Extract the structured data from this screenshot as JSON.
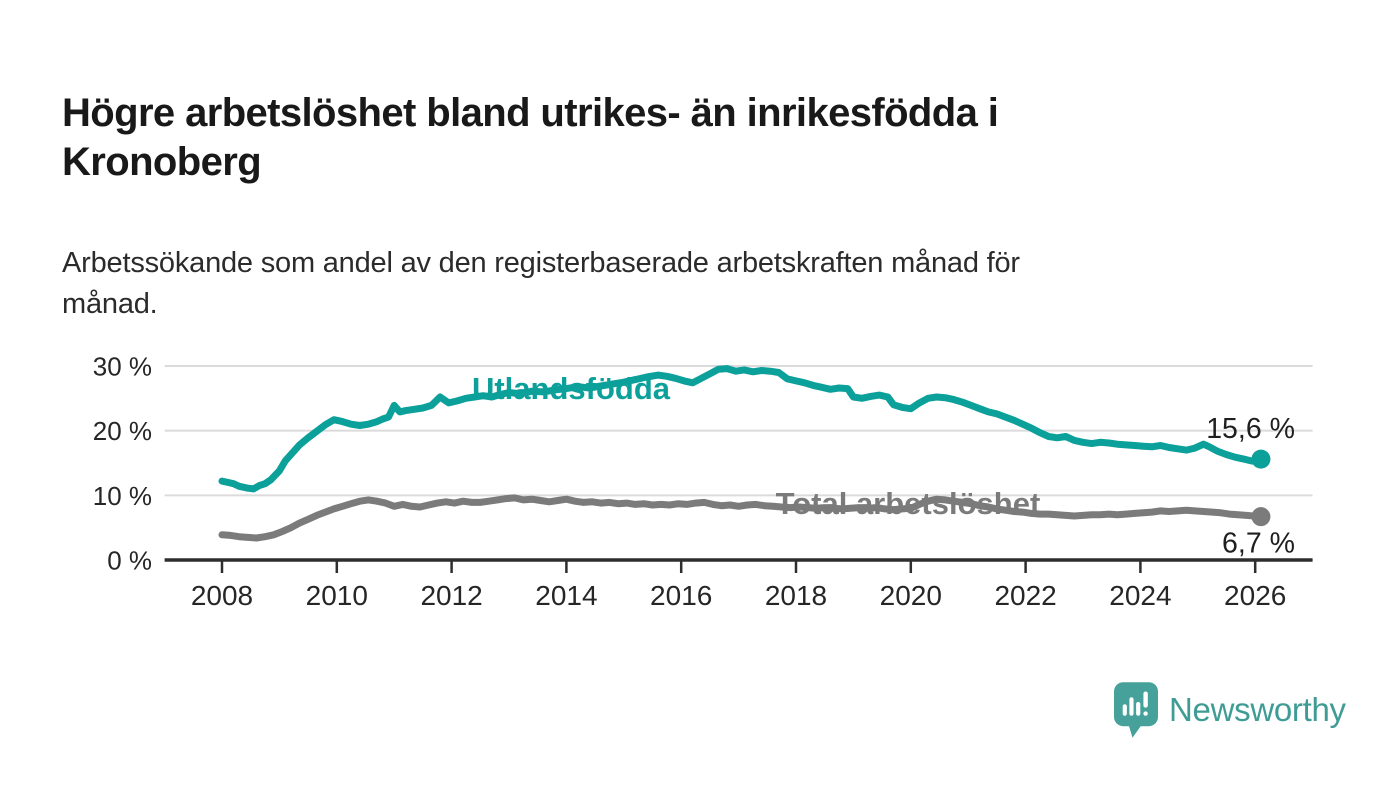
{
  "header": {
    "title_line1": "Högre arbetslöshet bland utrikes- än inrikesfödda i",
    "title_line2": "Kronoberg",
    "subtitle_line1": "Arbetssökande som andel av den registerbaserade arbetskraften månad för",
    "subtitle_line2": "månad."
  },
  "branding": {
    "logo_text": "Newsworthy",
    "logo_icon_color": "#45A19A",
    "logo_text_color": "#3E9C94"
  },
  "chart_data": {
    "type": "line",
    "unit": "percent",
    "grid": true,
    "legend_position": "inline-labels",
    "xlim": [
      2007,
      2027
    ],
    "ylim": [
      0,
      30
    ],
    "x_ticks": [
      "2008",
      "2010",
      "2012",
      "2014",
      "2016",
      "2018",
      "2020",
      "2022",
      "2024",
      "2026"
    ],
    "y_ticks": [
      {
        "value": 0,
        "label": "0 %"
      },
      {
        "value": 10,
        "label": "10 %"
      },
      {
        "value": 20,
        "label": "20 %"
      },
      {
        "value": 30,
        "label": "30 %"
      }
    ],
    "colors": {
      "grid": "#dbdbdb",
      "axis": "#2e2e2e",
      "tick_label": "#262626",
      "value_label": "#1f1f1f"
    },
    "series": [
      {
        "name": "Utlandsfödda",
        "color": "#0CA09A",
        "end_label": "15,6 %",
        "end_label_position": "above",
        "label_anchor": {
          "year": 2014.08,
          "value": 26.6
        },
        "points": [
          [
            2008.0,
            12.2
          ],
          [
            2008.1,
            12.0
          ],
          [
            2008.2,
            11.8
          ],
          [
            2008.3,
            11.4
          ],
          [
            2008.45,
            11.1
          ],
          [
            2008.55,
            11.0
          ],
          [
            2008.65,
            11.5
          ],
          [
            2008.75,
            11.8
          ],
          [
            2008.85,
            12.4
          ],
          [
            2009.0,
            13.8
          ],
          [
            2009.1,
            15.3
          ],
          [
            2009.2,
            16.3
          ],
          [
            2009.35,
            17.8
          ],
          [
            2009.5,
            18.9
          ],
          [
            2009.65,
            19.9
          ],
          [
            2009.8,
            20.9
          ],
          [
            2009.95,
            21.7
          ],
          [
            2010.1,
            21.4
          ],
          [
            2010.25,
            21.0
          ],
          [
            2010.4,
            20.8
          ],
          [
            2010.55,
            21.0
          ],
          [
            2010.7,
            21.4
          ],
          [
            2010.8,
            21.8
          ],
          [
            2010.9,
            22.1
          ],
          [
            2011.0,
            23.9
          ],
          [
            2011.1,
            22.9
          ],
          [
            2011.2,
            23.1
          ],
          [
            2011.35,
            23.3
          ],
          [
            2011.5,
            23.5
          ],
          [
            2011.65,
            23.9
          ],
          [
            2011.8,
            25.2
          ],
          [
            2011.95,
            24.3
          ],
          [
            2012.1,
            24.6
          ],
          [
            2012.25,
            25.0
          ],
          [
            2012.4,
            25.2
          ],
          [
            2012.55,
            25.4
          ],
          [
            2012.7,
            25.2
          ],
          [
            2012.85,
            25.6
          ],
          [
            2013.0,
            25.9
          ],
          [
            2013.2,
            25.7
          ],
          [
            2013.4,
            26.1
          ],
          [
            2013.6,
            26.0
          ],
          [
            2013.8,
            26.3
          ],
          [
            2014.0,
            26.5
          ],
          [
            2014.2,
            26.8
          ],
          [
            2014.4,
            26.6
          ],
          [
            2014.6,
            26.9
          ],
          [
            2014.8,
            27.2
          ],
          [
            2015.0,
            27.5
          ],
          [
            2015.2,
            27.9
          ],
          [
            2015.4,
            28.3
          ],
          [
            2015.6,
            28.6
          ],
          [
            2015.75,
            28.4
          ],
          [
            2015.9,
            28.1
          ],
          [
            2016.05,
            27.7
          ],
          [
            2016.2,
            27.4
          ],
          [
            2016.35,
            28.1
          ],
          [
            2016.5,
            28.8
          ],
          [
            2016.65,
            29.5
          ],
          [
            2016.8,
            29.6
          ],
          [
            2016.95,
            29.2
          ],
          [
            2017.1,
            29.4
          ],
          [
            2017.25,
            29.1
          ],
          [
            2017.4,
            29.3
          ],
          [
            2017.55,
            29.2
          ],
          [
            2017.7,
            29.0
          ],
          [
            2017.85,
            28.0
          ],
          [
            2018.0,
            27.7
          ],
          [
            2018.15,
            27.4
          ],
          [
            2018.3,
            27.0
          ],
          [
            2018.45,
            26.7
          ],
          [
            2018.6,
            26.4
          ],
          [
            2018.75,
            26.6
          ],
          [
            2018.9,
            26.5
          ],
          [
            2019.0,
            25.2
          ],
          [
            2019.15,
            25.0
          ],
          [
            2019.3,
            25.3
          ],
          [
            2019.45,
            25.5
          ],
          [
            2019.6,
            25.2
          ],
          [
            2019.7,
            24.0
          ],
          [
            2019.85,
            23.6
          ],
          [
            2020.0,
            23.4
          ],
          [
            2020.15,
            24.3
          ],
          [
            2020.3,
            25.0
          ],
          [
            2020.45,
            25.2
          ],
          [
            2020.6,
            25.1
          ],
          [
            2020.75,
            24.8
          ],
          [
            2020.9,
            24.4
          ],
          [
            2021.05,
            23.9
          ],
          [
            2021.2,
            23.4
          ],
          [
            2021.35,
            22.9
          ],
          [
            2021.5,
            22.6
          ],
          [
            2021.65,
            22.1
          ],
          [
            2021.8,
            21.6
          ],
          [
            2021.95,
            21.0
          ],
          [
            2022.1,
            20.4
          ],
          [
            2022.25,
            19.7
          ],
          [
            2022.4,
            19.1
          ],
          [
            2022.55,
            18.9
          ],
          [
            2022.7,
            19.1
          ],
          [
            2022.85,
            18.5
          ],
          [
            2023.0,
            18.2
          ],
          [
            2023.15,
            18.0
          ],
          [
            2023.3,
            18.2
          ],
          [
            2023.45,
            18.1
          ],
          [
            2023.6,
            17.9
          ],
          [
            2023.75,
            17.8
          ],
          [
            2023.9,
            17.7
          ],
          [
            2024.05,
            17.6
          ],
          [
            2024.2,
            17.5
          ],
          [
            2024.35,
            17.7
          ],
          [
            2024.5,
            17.4
          ],
          [
            2024.65,
            17.2
          ],
          [
            2024.8,
            17.0
          ],
          [
            2024.95,
            17.3
          ],
          [
            2025.1,
            17.9
          ],
          [
            2025.2,
            17.5
          ],
          [
            2025.35,
            16.8
          ],
          [
            2025.5,
            16.3
          ],
          [
            2025.65,
            15.9
          ],
          [
            2025.8,
            15.6
          ],
          [
            2025.95,
            15.3
          ],
          [
            2026.1,
            15.6
          ]
        ]
      },
      {
        "name": "Total arbetslöshet",
        "color": "#7B7B7B",
        "end_label": "6,7 %",
        "end_label_position": "below",
        "label_anchor": {
          "year": 2019.95,
          "value": 8.85
        },
        "points": [
          [
            2008.0,
            3.9
          ],
          [
            2008.15,
            3.8
          ],
          [
            2008.3,
            3.6
          ],
          [
            2008.45,
            3.5
          ],
          [
            2008.6,
            3.4
          ],
          [
            2008.75,
            3.6
          ],
          [
            2008.9,
            3.9
          ],
          [
            2009.05,
            4.4
          ],
          [
            2009.2,
            5.0
          ],
          [
            2009.35,
            5.7
          ],
          [
            2009.5,
            6.3
          ],
          [
            2009.65,
            6.9
          ],
          [
            2009.8,
            7.4
          ],
          [
            2009.95,
            7.9
          ],
          [
            2010.1,
            8.3
          ],
          [
            2010.25,
            8.7
          ],
          [
            2010.4,
            9.1
          ],
          [
            2010.55,
            9.3
          ],
          [
            2010.7,
            9.1
          ],
          [
            2010.85,
            8.8
          ],
          [
            2011.0,
            8.3
          ],
          [
            2011.15,
            8.6
          ],
          [
            2011.3,
            8.3
          ],
          [
            2011.45,
            8.2
          ],
          [
            2011.6,
            8.5
          ],
          [
            2011.75,
            8.8
          ],
          [
            2011.9,
            9.0
          ],
          [
            2012.05,
            8.8
          ],
          [
            2012.2,
            9.1
          ],
          [
            2012.35,
            8.9
          ],
          [
            2012.5,
            8.9
          ],
          [
            2012.65,
            9.1
          ],
          [
            2012.8,
            9.3
          ],
          [
            2012.95,
            9.5
          ],
          [
            2013.1,
            9.6
          ],
          [
            2013.25,
            9.3
          ],
          [
            2013.4,
            9.4
          ],
          [
            2013.55,
            9.2
          ],
          [
            2013.7,
            9.0
          ],
          [
            2013.85,
            9.2
          ],
          [
            2014.0,
            9.4
          ],
          [
            2014.15,
            9.1
          ],
          [
            2014.3,
            8.9
          ],
          [
            2014.45,
            9.0
          ],
          [
            2014.6,
            8.8
          ],
          [
            2014.75,
            8.9
          ],
          [
            2014.9,
            8.7
          ],
          [
            2015.05,
            8.8
          ],
          [
            2015.2,
            8.6
          ],
          [
            2015.35,
            8.7
          ],
          [
            2015.5,
            8.5
          ],
          [
            2015.65,
            8.6
          ],
          [
            2015.8,
            8.5
          ],
          [
            2015.95,
            8.7
          ],
          [
            2016.1,
            8.6
          ],
          [
            2016.25,
            8.8
          ],
          [
            2016.4,
            8.9
          ],
          [
            2016.55,
            8.6
          ],
          [
            2016.7,
            8.4
          ],
          [
            2016.85,
            8.5
          ],
          [
            2017.0,
            8.3
          ],
          [
            2017.15,
            8.5
          ],
          [
            2017.3,
            8.6
          ],
          [
            2017.45,
            8.4
          ],
          [
            2017.6,
            8.3
          ],
          [
            2017.75,
            8.2
          ],
          [
            2017.9,
            8.1
          ],
          [
            2018.05,
            8.2
          ],
          [
            2018.2,
            8.1
          ],
          [
            2018.35,
            8.0
          ],
          [
            2018.5,
            8.1
          ],
          [
            2018.65,
            8.0
          ],
          [
            2018.8,
            7.9
          ],
          [
            2018.95,
            8.0
          ],
          [
            2019.1,
            8.1
          ],
          [
            2019.25,
            8.0
          ],
          [
            2019.4,
            8.1
          ],
          [
            2019.55,
            7.9
          ],
          [
            2019.7,
            7.8
          ],
          [
            2019.85,
            7.9
          ],
          [
            2020.0,
            8.0
          ],
          [
            2020.15,
            8.6
          ],
          [
            2020.3,
            9.1
          ],
          [
            2020.45,
            9.4
          ],
          [
            2020.6,
            9.3
          ],
          [
            2020.75,
            9.1
          ],
          [
            2020.9,
            8.9
          ],
          [
            2021.05,
            8.7
          ],
          [
            2021.2,
            8.4
          ],
          [
            2021.35,
            8.2
          ],
          [
            2021.5,
            7.9
          ],
          [
            2021.65,
            7.7
          ],
          [
            2021.8,
            7.5
          ],
          [
            2021.95,
            7.4
          ],
          [
            2022.1,
            7.2
          ],
          [
            2022.25,
            7.1
          ],
          [
            2022.4,
            7.1
          ],
          [
            2022.55,
            7.0
          ],
          [
            2022.7,
            6.9
          ],
          [
            2022.85,
            6.8
          ],
          [
            2023.0,
            6.9
          ],
          [
            2023.15,
            7.0
          ],
          [
            2023.3,
            7.0
          ],
          [
            2023.45,
            7.1
          ],
          [
            2023.6,
            7.0
          ],
          [
            2023.75,
            7.1
          ],
          [
            2023.9,
            7.2
          ],
          [
            2024.05,
            7.3
          ],
          [
            2024.2,
            7.4
          ],
          [
            2024.35,
            7.6
          ],
          [
            2024.5,
            7.5
          ],
          [
            2024.65,
            7.6
          ],
          [
            2024.8,
            7.7
          ],
          [
            2024.95,
            7.6
          ],
          [
            2025.1,
            7.5
          ],
          [
            2025.25,
            7.4
          ],
          [
            2025.4,
            7.3
          ],
          [
            2025.55,
            7.1
          ],
          [
            2025.7,
            7.0
          ],
          [
            2025.85,
            6.9
          ],
          [
            2026.1,
            6.7
          ]
        ]
      }
    ]
  }
}
